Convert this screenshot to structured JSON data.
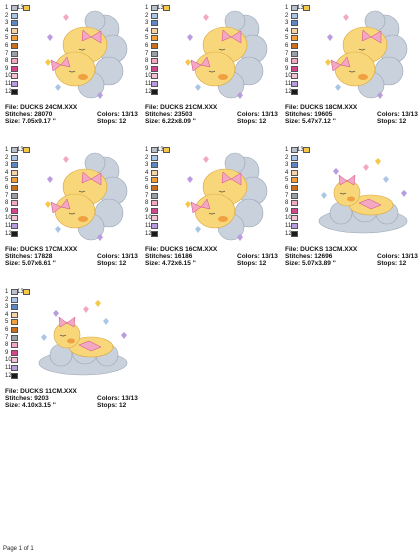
{
  "swatches": [
    {
      "label": "1",
      "color": "#b9c2cc"
    },
    {
      "label": "2",
      "color": "#a9c6e6"
    },
    {
      "label": "3",
      "color": "#5b87c7"
    },
    {
      "label": "4",
      "color": "#f6d3a6"
    },
    {
      "label": "5",
      "color": "#f0a040"
    },
    {
      "label": "6",
      "color": "#c8701e"
    },
    {
      "label": "7",
      "color": "#9aa0a8"
    },
    {
      "label": "8",
      "color": "#f2a7c3"
    },
    {
      "label": "9",
      "color": "#d4458b"
    },
    {
      "label": "10",
      "color": "#f6c2d8"
    },
    {
      "label": "11",
      "color": "#b99be0"
    },
    {
      "label": "12",
      "color": "#1a1a1a"
    },
    {
      "label": "13",
      "color": "#f5c84a"
    }
  ],
  "cards": [
    {
      "file": "File: DUCKS 24CM.XXX",
      "stitches": "Stitches: 28070",
      "size": "Size: 7.05x9.17 ''",
      "colors": "Colors: 13/13",
      "stops": "Stops: 12"
    },
    {
      "file": "File: DUCKS 21CM.XXX",
      "stitches": "Stitches: 23503",
      "size": "Size: 6.22x8.09 ''",
      "colors": "Colors: 13/13",
      "stops": "Stops: 12"
    },
    {
      "file": "File: DUCKS 18CM.XXX",
      "stitches": "Stitches: 19605",
      "size": "Size: 5.47x7.12 ''",
      "colors": "Colors: 13/13",
      "stops": "Stops: 12"
    },
    {
      "file": "File: DUCKS 17CM.XXX",
      "stitches": "Stitches: 17828",
      "size": "Size: 5.07x6.61 ''",
      "colors": "Colors: 13/13",
      "stops": "Stops: 12"
    },
    {
      "file": "File: DUCKS 16CM.XXX",
      "stitches": "Stitches: 16186",
      "size": "Size: 4.72x6.15 ''",
      "colors": "Colors: 13/13",
      "stops": "Stops: 12"
    },
    {
      "file": "File: DUCKS 13CM.XXX",
      "stitches": "Stitches: 12696",
      "size": "Size: 5.07x3.89 ''",
      "colors": "Colors: 13/13",
      "stops": "Stops: 12"
    },
    {
      "file": "File: DUCKS 11CM.XXX",
      "stitches": "Stitches: 9203",
      "size": "Size: 4.10x3.15 ''",
      "colors": "Colors: 13/13",
      "stops": "Stops: 12"
    }
  ],
  "footer": "Page 1 of 1"
}
